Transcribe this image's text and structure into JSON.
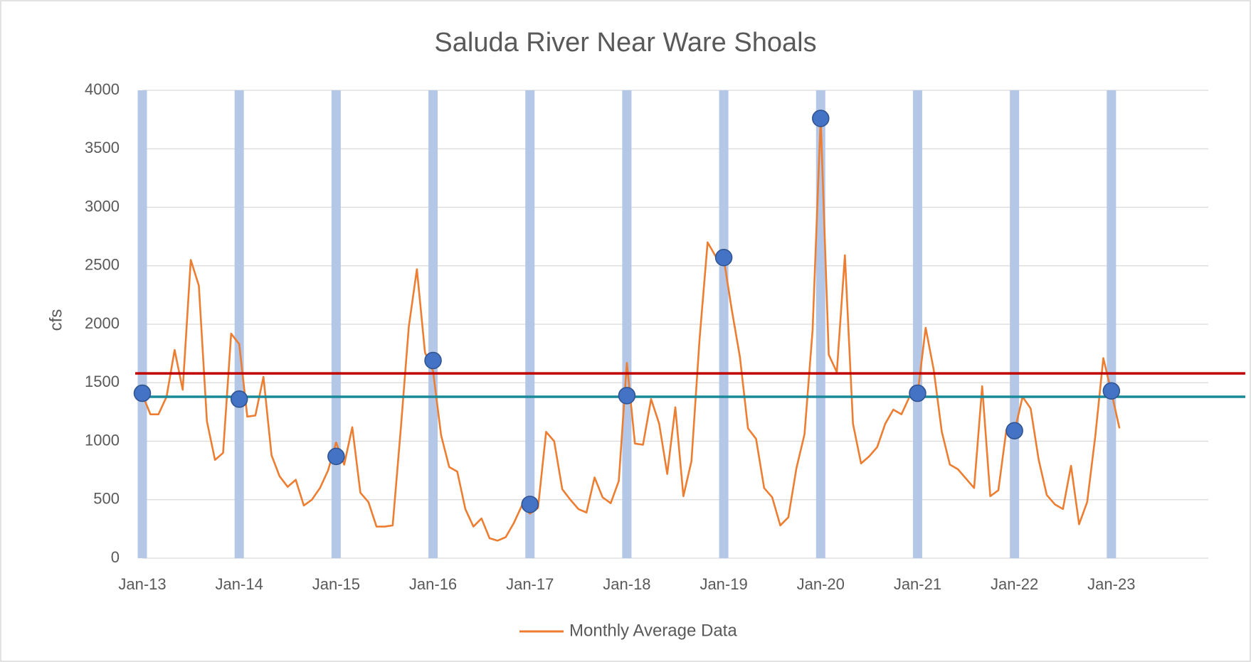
{
  "chart_data": {
    "type": "line",
    "title": "Saluda River Near Ware Shoals",
    "y_label": "cfs",
    "xlim": [
      "2013-01",
      "2024-01"
    ],
    "xticks": [
      {
        "value": "2013-01",
        "label": "Jan-13"
      },
      {
        "value": "2014-01",
        "label": "Jan-14"
      },
      {
        "value": "2015-01",
        "label": "Jan-15"
      },
      {
        "value": "2016-01",
        "label": "Jan-16"
      },
      {
        "value": "2017-01",
        "label": "Jan-17"
      },
      {
        "value": "2018-01",
        "label": "Jan-18"
      },
      {
        "value": "2019-01",
        "label": "Jan-19"
      },
      {
        "value": "2020-01",
        "label": "Jan-20"
      },
      {
        "value": "2021-01",
        "label": "Jan-21"
      },
      {
        "value": "2022-01",
        "label": "Jan-22"
      },
      {
        "value": "2023-01",
        "label": "Jan-23"
      }
    ],
    "ylim": [
      0,
      4000
    ],
    "yticks": [
      0,
      500,
      1000,
      1500,
      2000,
      2500,
      3000,
      3500,
      4000
    ],
    "grid": true,
    "legend": "bottom",
    "x": [
      "2013-01",
      "2013-02",
      "2013-03",
      "2013-04",
      "2013-05",
      "2013-06",
      "2013-07",
      "2013-08",
      "2013-09",
      "2013-10",
      "2013-11",
      "2013-12",
      "2014-01",
      "2014-02",
      "2014-03",
      "2014-04",
      "2014-05",
      "2014-06",
      "2014-07",
      "2014-08",
      "2014-09",
      "2014-10",
      "2014-11",
      "2014-12",
      "2015-01",
      "2015-02",
      "2015-03",
      "2015-04",
      "2015-05",
      "2015-06",
      "2015-07",
      "2015-08",
      "2015-09",
      "2015-10",
      "2015-11",
      "2015-12",
      "2016-01",
      "2016-02",
      "2016-03",
      "2016-04",
      "2016-05",
      "2016-06",
      "2016-07",
      "2016-08",
      "2016-09",
      "2016-10",
      "2016-11",
      "2016-12",
      "2017-01",
      "2017-02",
      "2017-03",
      "2017-04",
      "2017-05",
      "2017-06",
      "2017-07",
      "2017-08",
      "2017-09",
      "2017-10",
      "2017-11",
      "2017-12",
      "2018-01",
      "2018-02",
      "2018-03",
      "2018-04",
      "2018-05",
      "2018-06",
      "2018-07",
      "2018-08",
      "2018-09",
      "2018-10",
      "2018-11",
      "2018-12",
      "2019-01",
      "2019-02",
      "2019-03",
      "2019-04",
      "2019-05",
      "2019-06",
      "2019-07",
      "2019-08",
      "2019-09",
      "2019-10",
      "2019-11",
      "2019-12",
      "2020-01",
      "2020-02",
      "2020-03",
      "2020-04",
      "2020-05",
      "2020-06",
      "2020-07",
      "2020-08",
      "2020-09",
      "2020-10",
      "2020-11",
      "2020-12",
      "2021-01",
      "2021-02",
      "2021-03",
      "2021-04",
      "2021-05",
      "2021-06",
      "2021-07",
      "2021-08",
      "2021-09",
      "2021-10",
      "2021-11",
      "2021-12",
      "2022-01",
      "2022-02",
      "2022-03",
      "2022-04",
      "2022-05",
      "2022-06",
      "2022-07",
      "2022-08",
      "2022-09",
      "2022-10",
      "2022-11",
      "2022-12",
      "2023-01",
      "2023-02"
    ],
    "series": [
      {
        "name": "Monthly Average Data",
        "color": "#ed7d31",
        "values": [
          1400,
          1230,
          1230,
          1380,
          1780,
          1440,
          2550,
          2330,
          1170,
          840,
          900,
          1920,
          1830,
          1210,
          1220,
          1550,
          880,
          700,
          610,
          670,
          450,
          500,
          600,
          750,
          990,
          800,
          1120,
          560,
          480,
          270,
          270,
          280,
          1100,
          1980,
          2470,
          1760,
          1600,
          1050,
          780,
          740,
          420,
          270,
          340,
          170,
          150,
          180,
          300,
          450,
          380,
          430,
          1080,
          1000,
          590,
          500,
          420,
          390,
          690,
          520,
          470,
          660,
          1670,
          980,
          970,
          1360,
          1150,
          720,
          1290,
          530,
          830,
          1870,
          2700,
          2580,
          2560,
          2120,
          1720,
          1110,
          1020,
          600,
          520,
          280,
          350,
          770,
          1060,
          1950,
          3760,
          1740,
          1590,
          2590,
          1150,
          810,
          870,
          950,
          1150,
          1270,
          1230,
          1380,
          1400,
          1970,
          1610,
          1080,
          800,
          760,
          680,
          600,
          1470,
          530,
          580,
          1100,
          1080,
          1380,
          1280,
          840,
          540,
          460,
          420,
          790,
          290,
          480,
          1040,
          1710,
          1420,
          1110
        ]
      }
    ],
    "bars": {
      "color": "#b4c7e7",
      "x": [
        "2013-01",
        "2014-01",
        "2015-01",
        "2016-01",
        "2017-01",
        "2018-01",
        "2019-01",
        "2020-01",
        "2021-01",
        "2022-01",
        "2023-01"
      ],
      "values": [
        4000,
        4000,
        4000,
        4000,
        4000,
        4000,
        4000,
        4000,
        4000,
        4000,
        4000
      ]
    },
    "markers": {
      "color": "#4472c4",
      "x": [
        "2013-01",
        "2014-01",
        "2015-01",
        "2016-01",
        "2017-01",
        "2018-01",
        "2019-01",
        "2020-01",
        "2021-01",
        "2022-01",
        "2023-01"
      ],
      "values": [
        1410,
        1360,
        870,
        1690,
        460,
        1390,
        2570,
        3760,
        1410,
        1090,
        1430
      ]
    },
    "reference_lines": [
      {
        "color": "#c00000",
        "value": 1580
      },
      {
        "color": "#1a8a9a",
        "value": 1380
      }
    ]
  }
}
